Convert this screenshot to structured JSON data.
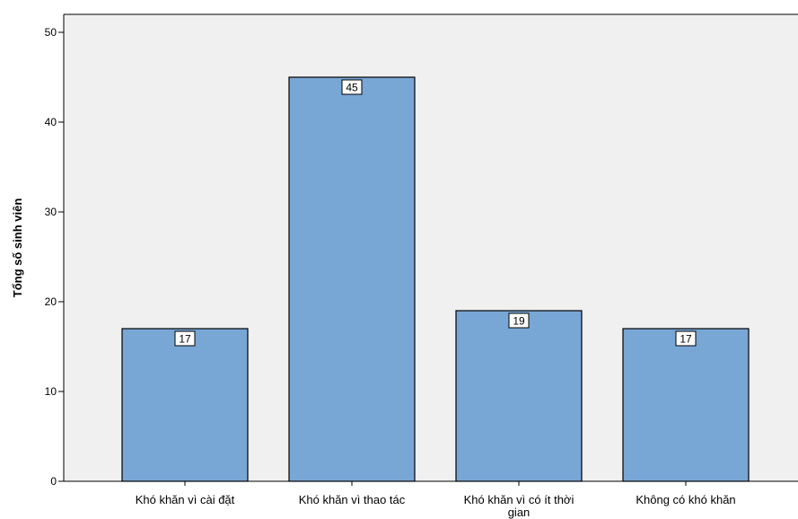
{
  "chart_data": {
    "type": "bar",
    "categories": [
      [
        "Khó khăn vì cài đặt"
      ],
      [
        "Khó khăn vì thao tác"
      ],
      [
        "Khó khăn vì có ít thời",
        "gian"
      ],
      [
        "Không có khó khăn"
      ]
    ],
    "values": [
      17,
      45,
      19,
      17
    ],
    "data_labels": [
      "17",
      "45",
      "19",
      "17"
    ],
    "title": "",
    "xlabel": "",
    "ylabel": "Tổng số sinh viên",
    "ylim": [
      0,
      52
    ],
    "yticks": [
      0,
      10,
      20,
      30,
      40,
      50
    ],
    "grid": false,
    "legend": "none"
  },
  "colors": {
    "plot_background": "#f0f0f0",
    "bar_fill": "#79a7d5",
    "bar_stroke": "#000000",
    "axis": "#000000"
  }
}
